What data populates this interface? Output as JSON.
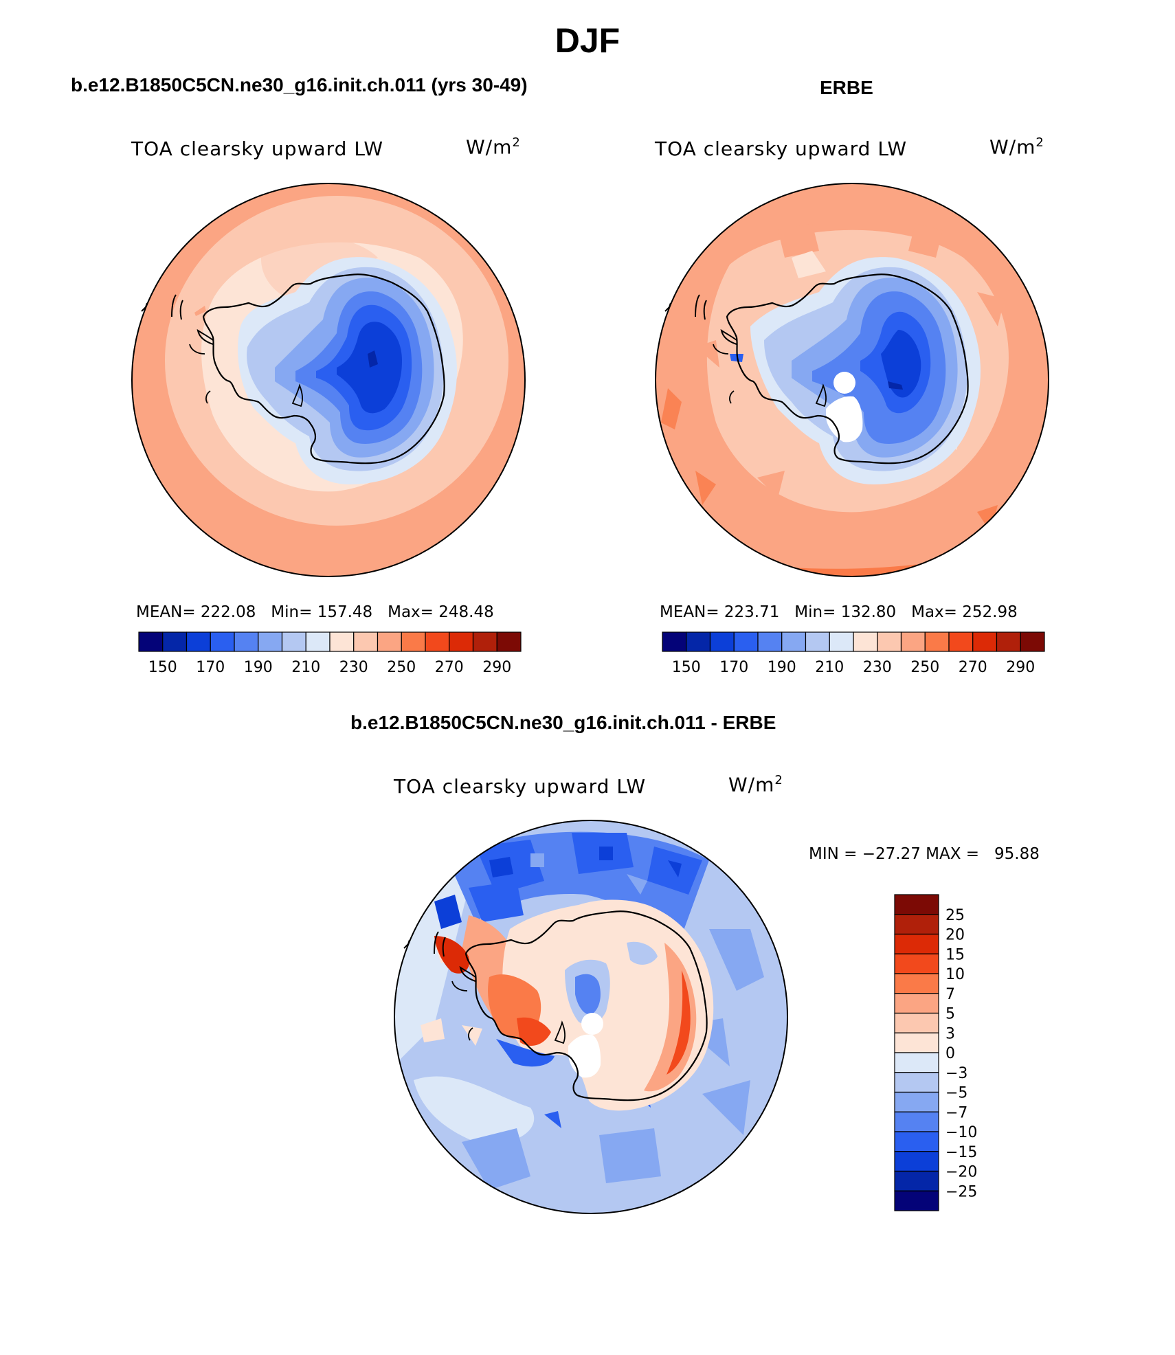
{
  "page": {
    "title": "DJF",
    "top_left_title": "b.e12.B1850C5CN.ne30_g16.init.ch.011 (yrs 30-49)",
    "top_right_title": "ERBE",
    "bottom_title": "b.e12.B1850C5CN.ne30_g16.init.ch.011 - ERBE"
  },
  "panels": {
    "model": {
      "variable": "TOA clearsky upward LW",
      "units_base": "W/m",
      "units_exp": "2",
      "stats": "MEAN= 222.08   Min= 157.48   Max= 248.48"
    },
    "obs": {
      "variable": "TOA clearsky upward LW",
      "units_base": "W/m",
      "units_exp": "2",
      "stats": "MEAN= 223.71   Min= 132.80   Max= 252.98"
    },
    "diff": {
      "variable": "TOA clearsky upward LW",
      "units_base": "W/m",
      "units_exp": "2",
      "stats": "MIN = −27.27 MAX =   95.88"
    }
  },
  "colorbars": {
    "absolute": {
      "colors": [
        "#040378",
        "#0426a8",
        "#0c3fd8",
        "#2a5ff0",
        "#5582f2",
        "#86a8f2",
        "#b4c8f2",
        "#dce8f8",
        "#fde4d6",
        "#fcc8b0",
        "#fba583",
        "#fa7a48",
        "#f2491c",
        "#dc2a06",
        "#b0200a",
        "#7c0a05"
      ],
      "tick_labels": [
        "150",
        "170",
        "190",
        "210",
        "230",
        "250",
        "270",
        "290"
      ]
    },
    "diff": {
      "colors": [
        "#7c0a05",
        "#b0200a",
        "#dc2a06",
        "#f2491c",
        "#fa7a48",
        "#fba583",
        "#fcc8b0",
        "#fde4d6",
        "#dce8f8",
        "#b4c8f2",
        "#86a8f2",
        "#5582f2",
        "#2a5ff0",
        "#0c3fd8",
        "#0426a8",
        "#040378"
      ],
      "tick_labels": [
        "25",
        "20",
        "15",
        "10",
        "7",
        "5",
        "3",
        "0",
        "−3",
        "−5",
        "−7",
        "−10",
        "−15",
        "−20",
        "−25"
      ]
    }
  }
}
